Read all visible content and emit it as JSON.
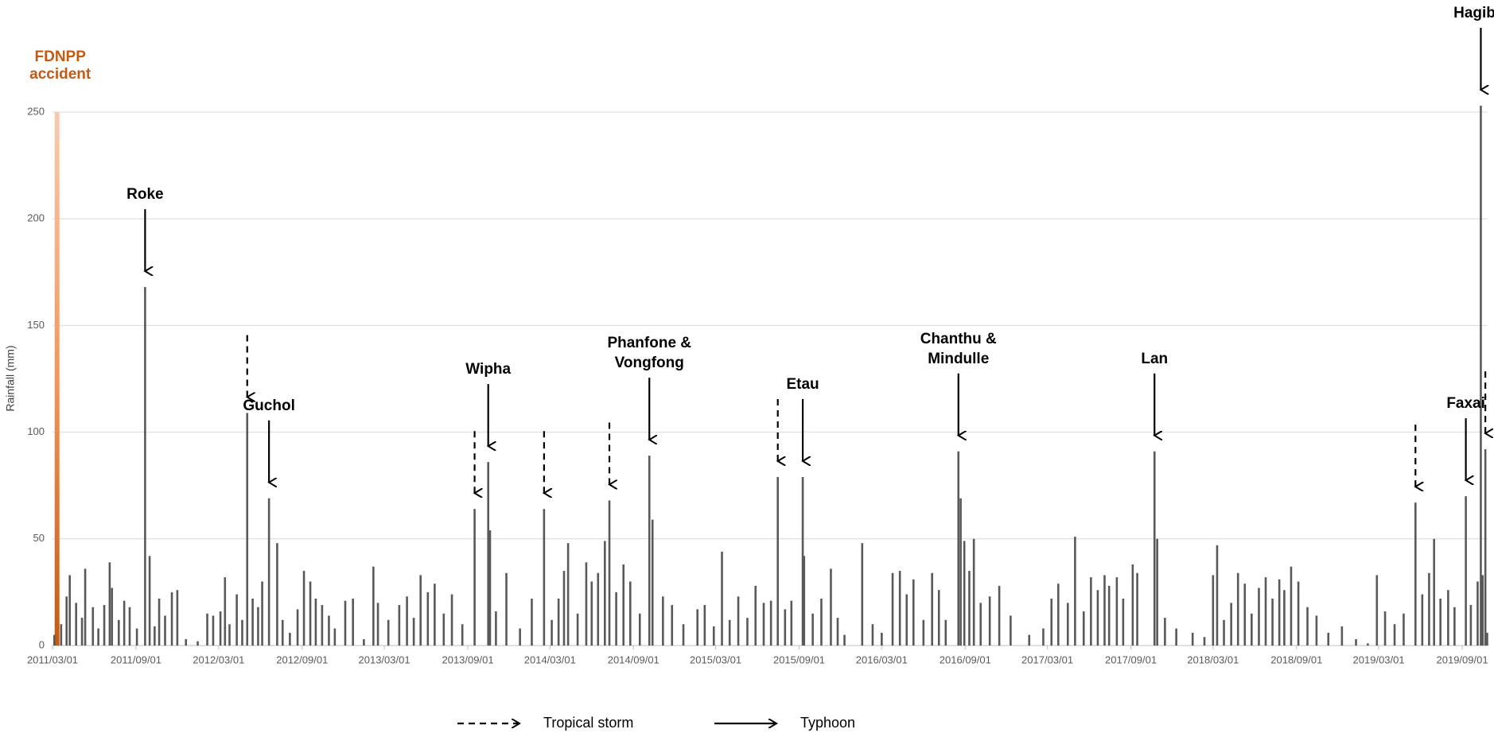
{
  "chart_data": {
    "type": "bar",
    "y_label": "Rainfall (mm)",
    "color": "#595959",
    "grid": true,
    "ylim": [
      0,
      250
    ],
    "yticks": [
      0,
      50,
      100,
      150,
      200,
      250
    ],
    "xlim": [
      "2011/03/01",
      "2019/10/27"
    ],
    "xticks": [
      "2011/03/01",
      "2011/09/01",
      "2012/03/01",
      "2012/09/01",
      "2013/03/01",
      "2013/09/01",
      "2014/03/01",
      "2014/09/01",
      "2015/03/01",
      "2015/09/01",
      "2016/03/01",
      "2016/09/01",
      "2017/03/01",
      "2017/09/01",
      "2018/03/01",
      "2018/09/01",
      "2019/03/01",
      "2019/09/01"
    ],
    "x": [
      "2011/03/05",
      "2011/03/20",
      "2011/04/01",
      "2011/04/08",
      "2011/04/22",
      "2011/05/05",
      "2011/05/12",
      "2011/05/29",
      "2011/06/10",
      "2011/06/23",
      "2011/07/05",
      "2011/07/10",
      "2011/07/25",
      "2011/08/06",
      "2011/08/18",
      "2011/09/03",
      "2011/09/21",
      "2011/10/01",
      "2011/10/12",
      "2011/10/22",
      "2011/11/04",
      "2011/11/19",
      "2011/12/01",
      "2011/12/20",
      "2012/01/15",
      "2012/02/05",
      "2012/02/18",
      "2012/03/05",
      "2012/03/15",
      "2012/03/25",
      "2012/04/10",
      "2012/04/22",
      "2012/05/03",
      "2012/05/15",
      "2012/05/27",
      "2012/06/05",
      "2012/06/20",
      "2012/07/08",
      "2012/07/20",
      "2012/08/05",
      "2012/08/22",
      "2012/09/05",
      "2012/09/19",
      "2012/10/01",
      "2012/10/15",
      "2012/10/30",
      "2012/11/12",
      "2012/12/05",
      "2012/12/22",
      "2013/01/15",
      "2013/02/05",
      "2013/02/15",
      "2013/03/10",
      "2013/04/03",
      "2013/04/20",
      "2013/05/05",
      "2013/05/20",
      "2013/06/05",
      "2013/06/20",
      "2013/07/10",
      "2013/07/28",
      "2013/08/20",
      "2013/09/16",
      "2013/10/16",
      "2013/10/20",
      "2013/11/02",
      "2013/11/25",
      "2013/12/25",
      "2014/01/20",
      "2014/02/16",
      "2014/03/05",
      "2014/03/20",
      "2014/04/01",
      "2014/04/10",
      "2014/05/01",
      "2014/05/20",
      "2014/06/01",
      "2014/06/15",
      "2014/06/30",
      "2014/07/10",
      "2014/07/25",
      "2014/08/10",
      "2014/08/25",
      "2014/09/15",
      "2014/10/06",
      "2014/10/13",
      "2014/11/05",
      "2014/11/25",
      "2014/12/20",
      "2015/01/20",
      "2015/02/05",
      "2015/02/25",
      "2015/03/15",
      "2015/04/01",
      "2015/04/20",
      "2015/05/10",
      "2015/05/28",
      "2015/06/15",
      "2015/07/01",
      "2015/07/16",
      "2015/08/01",
      "2015/08/15",
      "2015/09/09",
      "2015/09/12",
      "2015/10/01",
      "2015/10/20",
      "2015/11/10",
      "2015/11/25",
      "2015/12/10",
      "2016/01/18",
      "2016/02/10",
      "2016/03/01",
      "2016/03/25",
      "2016/04/10",
      "2016/04/25",
      "2016/05/10",
      "2016/06/01",
      "2016/06/20",
      "2016/07/05",
      "2016/07/20",
      "2016/08/17",
      "2016/08/22",
      "2016/08/30",
      "2016/09/10",
      "2016/09/20",
      "2016/10/05",
      "2016/10/25",
      "2016/11/15",
      "2016/12/10",
      "2017/01/20",
      "2017/02/20",
      "2017/03/10",
      "2017/03/25",
      "2017/04/15",
      "2017/05/01",
      "2017/05/20",
      "2017/06/05",
      "2017/06/20",
      "2017/07/05",
      "2017/07/15",
      "2017/08/01",
      "2017/08/15",
      "2017/09/05",
      "2017/09/15",
      "2017/10/23",
      "2017/10/29",
      "2017/11/15",
      "2017/12/10",
      "2018/01/15",
      "2018/02/10",
      "2018/03/01",
      "2018/03/10",
      "2018/03/25",
      "2018/04/10",
      "2018/04/25",
      "2018/05/10",
      "2018/05/25",
      "2018/06/10",
      "2018/06/25",
      "2018/07/10",
      "2018/07/25",
      "2018/08/05",
      "2018/08/20",
      "2018/09/05",
      "2018/09/25",
      "2018/10/15",
      "2018/11/10",
      "2018/12/10",
      "2019/01/10",
      "2019/02/05",
      "2019/02/25",
      "2019/03/15",
      "2019/04/05",
      "2019/04/25",
      "2019/05/21",
      "2019/06/05",
      "2019/06/20",
      "2019/07/01",
      "2019/07/15",
      "2019/08/01",
      "2019/08/15",
      "2019/09/09",
      "2019/09/20",
      "2019/10/05",
      "2019/10/12",
      "2019/10/16",
      "2019/10/22",
      "2019/10/26"
    ],
    "values": [
      5,
      10,
      23,
      33,
      20,
      13,
      36,
      18,
      8,
      19,
      39,
      27,
      12,
      21,
      18,
      8,
      168,
      42,
      9,
      22,
      14,
      25,
      26,
      3,
      2,
      15,
      14,
      16,
      32,
      10,
      24,
      12,
      109,
      22,
      18,
      30,
      69,
      48,
      12,
      6,
      17,
      35,
      30,
      22,
      19,
      14,
      8,
      21,
      22,
      3,
      37,
      20,
      12,
      19,
      23,
      13,
      33,
      25,
      29,
      15,
      24,
      10,
      64,
      86,
      54,
      16,
      34,
      8,
      22,
      64,
      12,
      22,
      35,
      48,
      15,
      39,
      30,
      34,
      49,
      68,
      25,
      38,
      30,
      15,
      89,
      59,
      23,
      19,
      10,
      17,
      19,
      9,
      44,
      12,
      23,
      13,
      28,
      20,
      21,
      79,
      17,
      21,
      79,
      42,
      15,
      22,
      36,
      13,
      5,
      48,
      10,
      6,
      34,
      35,
      24,
      31,
      12,
      34,
      26,
      12,
      91,
      69,
      49,
      35,
      50,
      20,
      23,
      28,
      14,
      5,
      8,
      22,
      29,
      20,
      51,
      16,
      32,
      26,
      33,
      28,
      32,
      22,
      38,
      34,
      91,
      50,
      13,
      8,
      6,
      4,
      33,
      47,
      12,
      20,
      34,
      29,
      15,
      27,
      32,
      22,
      31,
      26,
      37,
      30,
      18,
      14,
      6,
      9,
      3,
      1,
      33,
      16,
      10,
      15,
      67,
      24,
      34,
      50,
      22,
      26,
      18,
      70,
      19,
      30,
      253,
      33,
      92,
      6
    ],
    "event": {
      "text": [
        "FDNPP",
        "accident"
      ],
      "x": "2011/03/11",
      "color": "#c55a11"
    },
    "annotations": [
      {
        "text": [
          "Roke"
        ],
        "x": "2011/09/21",
        "arrow": "solid"
      },
      {
        "x": "2012/05/03",
        "arrow": "dashed"
      },
      {
        "text": [
          "Guchol"
        ],
        "x": "2012/06/20",
        "arrow": "solid"
      },
      {
        "x": "2013/09/16",
        "arrow": "dashed"
      },
      {
        "text": [
          "Wipha"
        ],
        "x": "2013/10/16",
        "arrow": "solid"
      },
      {
        "x": "2014/02/16",
        "arrow": "dashed"
      },
      {
        "x": "2014/07/10",
        "arrow": "dashed"
      },
      {
        "text": [
          "Phanfone &",
          "Vongfong"
        ],
        "x": "2014/10/06",
        "arrow": "solid"
      },
      {
        "x": "2015/07/16",
        "arrow": "dashed"
      },
      {
        "text": [
          "Etau"
        ],
        "x": "2015/09/09",
        "arrow": "solid"
      },
      {
        "text": [
          "Chanthu &",
          "Mindulle"
        ],
        "x": "2016/08/17",
        "arrow": "solid"
      },
      {
        "text": [
          "Lan"
        ],
        "x": "2017/10/23",
        "arrow": "solid"
      },
      {
        "x": "2019/05/21",
        "arrow": "dashed"
      },
      {
        "text": [
          "Faxai"
        ],
        "x": "2019/09/09",
        "arrow": "solid"
      },
      {
        "text": [
          "Hagibis"
        ],
        "x": "2019/10/12",
        "arrow": "solid"
      },
      {
        "x": "2019/10/22",
        "arrow": "dashed"
      }
    ],
    "legend": [
      {
        "name": "Tropical storm",
        "style": "dashed"
      },
      {
        "name": "Typhoon",
        "style": "solid"
      }
    ]
  }
}
